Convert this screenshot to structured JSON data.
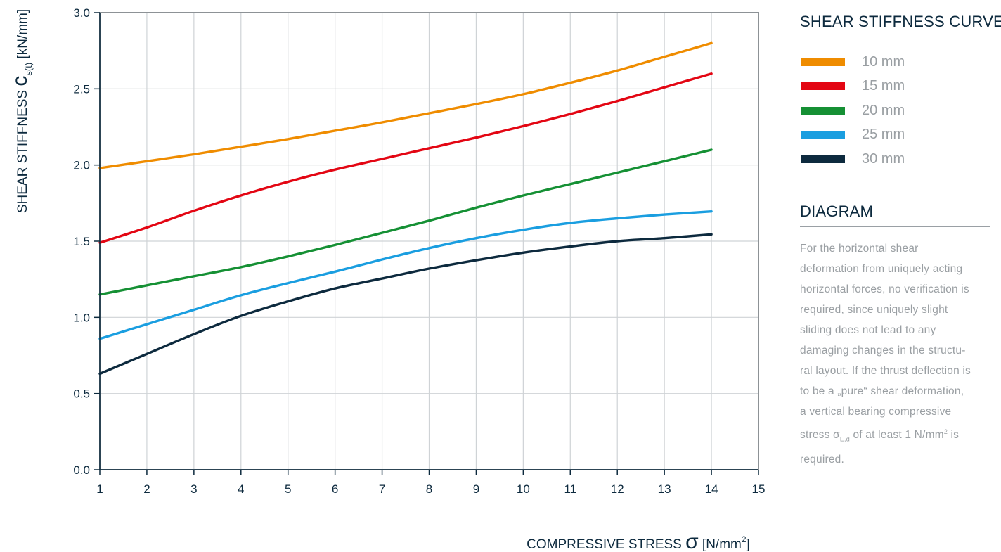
{
  "chart_data": {
    "type": "line",
    "title": "SHEAR STIFFNESS CURVE",
    "ylabel": {
      "prefix": "SHEAR STIFFNESS ",
      "symbol": "c",
      "subscript": "s(t)",
      "unit": " [kN/mm]"
    },
    "xlabel": {
      "prefix": "COMPRESSIVE STRESS ",
      "symbol": "σ",
      "unit": " [N/mm",
      "unit_sup": "2",
      "unit_end": "]"
    },
    "xlim": [
      1,
      15
    ],
    "ylim": [
      0.0,
      3.0
    ],
    "x_ticks": [
      "1",
      "2",
      "3",
      "4",
      "5",
      "6",
      "7",
      "8",
      "9",
      "10",
      "11",
      "12",
      "13",
      "14",
      "15"
    ],
    "y_ticks": [
      "0.0",
      "0.5",
      "1.0",
      "1.5",
      "2.0",
      "2.5",
      "3.0"
    ],
    "grid": true,
    "legend_position": "right",
    "x": [
      1,
      2,
      3,
      4,
      5,
      6,
      7,
      8,
      9,
      10,
      11,
      12,
      13,
      14
    ],
    "series": [
      {
        "name": "10 mm",
        "color": "#ef8c00",
        "values": [
          1.98,
          2.025,
          2.07,
          2.12,
          2.17,
          2.225,
          2.28,
          2.34,
          2.4,
          2.465,
          2.54,
          2.62,
          2.71,
          2.8
        ]
      },
      {
        "name": "15 mm",
        "color": "#e30613",
        "values": [
          1.49,
          1.59,
          1.7,
          1.8,
          1.89,
          1.97,
          2.04,
          2.11,
          2.18,
          2.255,
          2.335,
          2.42,
          2.51,
          2.6
        ]
      },
      {
        "name": "20 mm",
        "color": "#159034",
        "values": [
          1.15,
          1.21,
          1.27,
          1.33,
          1.4,
          1.475,
          1.555,
          1.635,
          1.72,
          1.8,
          1.875,
          1.95,
          2.025,
          2.1
        ]
      },
      {
        "name": "25 mm",
        "color": "#1a9ee0",
        "values": [
          0.86,
          0.955,
          1.05,
          1.145,
          1.225,
          1.3,
          1.38,
          1.455,
          1.52,
          1.575,
          1.62,
          1.65,
          1.675,
          1.695
        ]
      },
      {
        "name": "30 mm",
        "color": "#0d2a3e",
        "values": [
          0.63,
          0.76,
          0.89,
          1.01,
          1.105,
          1.19,
          1.255,
          1.32,
          1.375,
          1.425,
          1.465,
          1.5,
          1.52,
          1.545
        ]
      }
    ]
  },
  "sidebar": {
    "legend_heading": "SHEAR STIFFNESS CURVE",
    "diagram_heading": "DIAGRAM",
    "description": {
      "part1": "For the horizontal shear deformation from uniquely acting horizontal forces, no verification is required, since uniquely slight sliding does not lead to any damaging changes in the structu-ral layout. If the thrust deflection is to be a „pure“ shear deformation, a vertical bearing compressive stress ",
      "sigma": "σ",
      "sigma_sub": "E,d",
      "part2": " of at least 1 N/mm",
      "part2_sup": "2",
      "part3": " is required."
    }
  }
}
